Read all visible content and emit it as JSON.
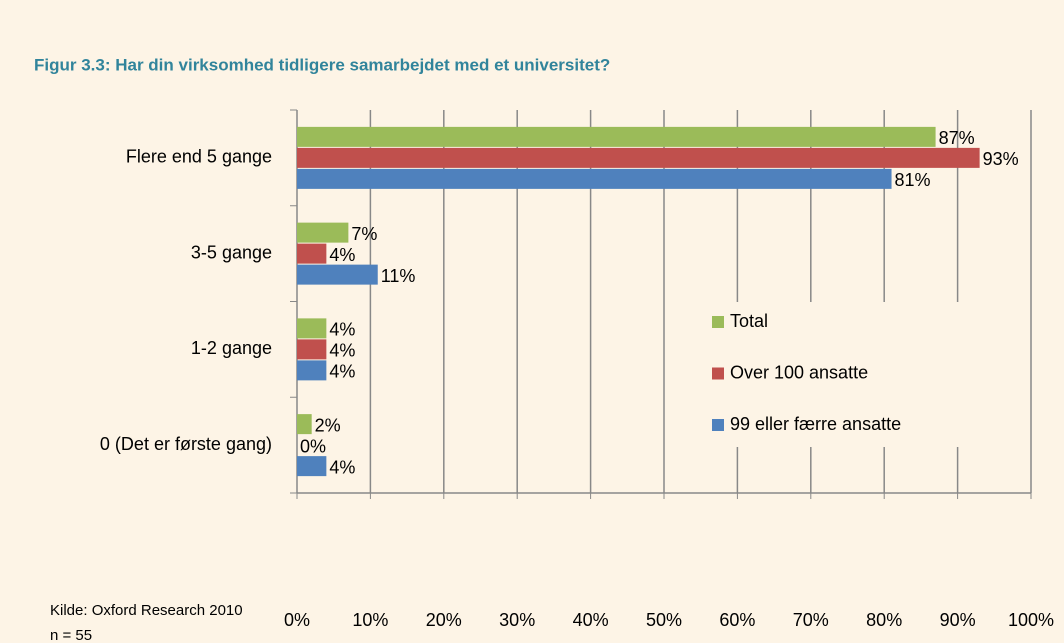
{
  "chart_data": {
    "type": "bar",
    "orientation": "horizontal",
    "title": "Figur 3.3: Har din virksomhed tidligere samarbejdet med et universitet?",
    "categories": [
      "Flere end 5 gange",
      "3-5 gange",
      "1-2 gange",
      "0 (Det er første gang)"
    ],
    "series": [
      {
        "name": "Total",
        "color": "#9bbb59",
        "values": [
          87,
          7,
          4,
          2
        ],
        "value_labels": [
          "87%",
          "7%",
          "4%",
          "2%"
        ]
      },
      {
        "name": "Over 100 ansatte",
        "color": "#c0504d",
        "values": [
          93,
          4,
          4,
          0
        ],
        "value_labels": [
          "93%",
          "4%",
          "4%",
          "0%"
        ]
      },
      {
        "name": "99 eller færre ansatte",
        "color": "#4f81bd",
        "values": [
          81,
          11,
          4,
          4
        ],
        "value_labels": [
          "81%",
          "11%",
          "4%",
          "4%"
        ]
      }
    ],
    "xlim": [
      0,
      100
    ],
    "xticks": [
      {
        "value": 0,
        "label": "0%"
      },
      {
        "value": 10,
        "label": "10%"
      },
      {
        "value": 20,
        "label": "20%"
      },
      {
        "value": 30,
        "label": "30%"
      },
      {
        "value": 40,
        "label": "40%"
      },
      {
        "value": 50,
        "label": "50%"
      },
      {
        "value": 60,
        "label": "60%"
      },
      {
        "value": 70,
        "label": "70%"
      },
      {
        "value": 80,
        "label": "80%"
      },
      {
        "value": 90,
        "label": "90%"
      },
      {
        "value": 100,
        "label": "100%"
      }
    ],
    "grid": true,
    "legend": "right",
    "notes": [
      "Kilde: Oxford Research 2010",
      "n = 55"
    ]
  }
}
